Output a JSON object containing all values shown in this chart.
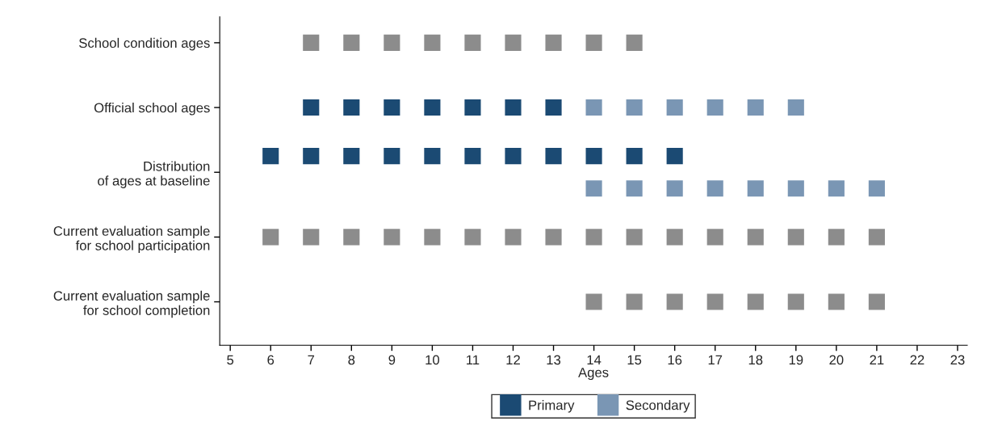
{
  "chart_data": {
    "type": "scatter",
    "orientation": "horizontal",
    "xlabel": "Ages",
    "marker": "square",
    "grid": false,
    "legend": "bottom",
    "categories": [
      "School condition ages",
      "Official school ages",
      "Distribution\nof ages at baseline",
      "Current evaluation sample\nfor school participation",
      "Current evaluation sample\nfor school completion"
    ],
    "xlim": [
      4.74,
      23.24
    ],
    "xticks": [
      5,
      6,
      7,
      8,
      9,
      10,
      11,
      12,
      13,
      14,
      15,
      16,
      17,
      18,
      19,
      20,
      21,
      22,
      23
    ],
    "series": [
      {
        "color": "#8c8c8c",
        "x": [
          "School condition ages",
          "School condition ages",
          "School condition ages",
          "School condition ages",
          "School condition ages",
          "School condition ages",
          "School condition ages",
          "School condition ages",
          "School condition ages",
          "Current evaluation sample\nfor school participation",
          "Current evaluation sample\nfor school participation",
          "Current evaluation sample\nfor school participation",
          "Current evaluation sample\nfor school participation",
          "Current evaluation sample\nfor school participation",
          "Current evaluation sample\nfor school participation",
          "Current evaluation sample\nfor school participation",
          "Current evaluation sample\nfor school participation",
          "Current evaluation sample\nfor school participation",
          "Current evaluation sample\nfor school participation",
          "Current evaluation sample\nfor school participation",
          "Current evaluation sample\nfor school participation",
          "Current evaluation sample\nfor school participation",
          "Current evaluation sample\nfor school participation",
          "Current evaluation sample\nfor school participation",
          "Current evaluation sample\nfor school participation",
          "Current evaluation sample\nfor school completion",
          "Current evaluation sample\nfor school completion",
          "Current evaluation sample\nfor school completion",
          "Current evaluation sample\nfor school completion",
          "Current evaluation sample\nfor school completion",
          "Current evaluation sample\nfor school completion",
          "Current evaluation sample\nfor school completion",
          "Current evaluation sample\nfor school completion"
        ],
        "values": [
          7,
          8,
          9,
          10,
          11,
          12,
          13,
          14,
          15,
          6,
          7,
          8,
          9,
          10,
          11,
          12,
          13,
          14,
          15,
          16,
          17,
          18,
          19,
          20,
          21,
          14,
          15,
          16,
          17,
          18,
          19,
          20,
          21
        ]
      },
      {
        "name": "Primary",
        "color": "#1b4a73",
        "x": [
          "Official school ages",
          "Official school ages",
          "Official school ages",
          "Official school ages",
          "Official school ages",
          "Official school ages",
          "Official school ages",
          "Distribution\nof ages at baseline",
          "Distribution\nof ages at baseline",
          "Distribution\nof ages at baseline",
          "Distribution\nof ages at baseline",
          "Distribution\nof ages at baseline",
          "Distribution\nof ages at baseline",
          "Distribution\nof ages at baseline",
          "Distribution\nof ages at baseline",
          "Distribution\nof ages at baseline",
          "Distribution\nof ages at baseline",
          "Distribution\nof ages at baseline"
        ],
        "values": [
          7,
          8,
          9,
          10,
          11,
          12,
          13,
          6,
          7,
          8,
          9,
          10,
          11,
          12,
          13,
          14,
          15,
          16
        ]
      },
      {
        "name": "Secondary",
        "color": "#7a96b4",
        "x": [
          "Official school ages",
          "Official school ages",
          "Official school ages",
          "Official school ages",
          "Official school ages",
          "Official school ages",
          "Distribution\nof ages at baseline",
          "Distribution\nof ages at baseline",
          "Distribution\nof ages at baseline",
          "Distribution\nof ages at baseline",
          "Distribution\nof ages at baseline",
          "Distribution\nof ages at baseline",
          "Distribution\nof ages at baseline",
          "Distribution\nof ages at baseline"
        ],
        "values": [
          14,
          15,
          16,
          17,
          18,
          19,
          14,
          15,
          16,
          17,
          18,
          19,
          20,
          21
        ]
      }
    ]
  }
}
